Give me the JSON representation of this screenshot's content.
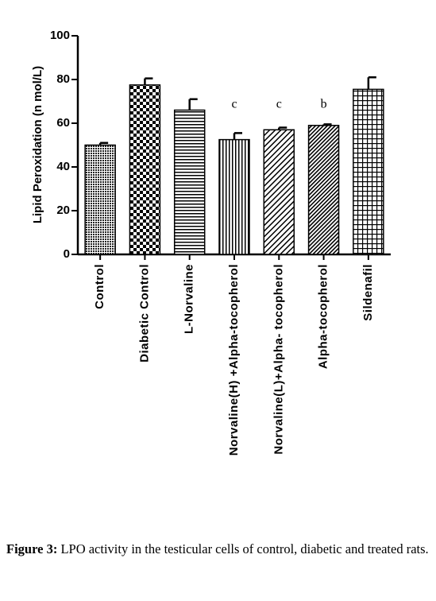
{
  "chart_data": {
    "type": "bar",
    "y_label": "Lipid Peroxidation (n mol/L)",
    "categories": [
      "Control",
      "Diabetic Control",
      "L-Norvaline",
      "Norvaline(H) +Alpha-tocopherol",
      "Norvaline(L)+Alpha- tocopherol",
      "Alpha-tocopherol",
      "Sildenafil"
    ],
    "values": [
      50,
      77.5,
      66,
      52.5,
      57,
      59,
      75.5
    ],
    "errors": [
      1,
      3,
      5,
      3,
      1,
      0.5,
      5.5
    ],
    "significance": [
      null,
      null,
      null,
      "c",
      "c",
      "b",
      null
    ],
    "color": "#000000",
    "ylim": [
      0,
      100
    ],
    "yticks": [
      0,
      20,
      40,
      60,
      80,
      100
    ]
  },
  "caption": {
    "label": "Figure 3:",
    "text": "LPO activity in the testicular cells of control, diabetic and treated rats."
  }
}
